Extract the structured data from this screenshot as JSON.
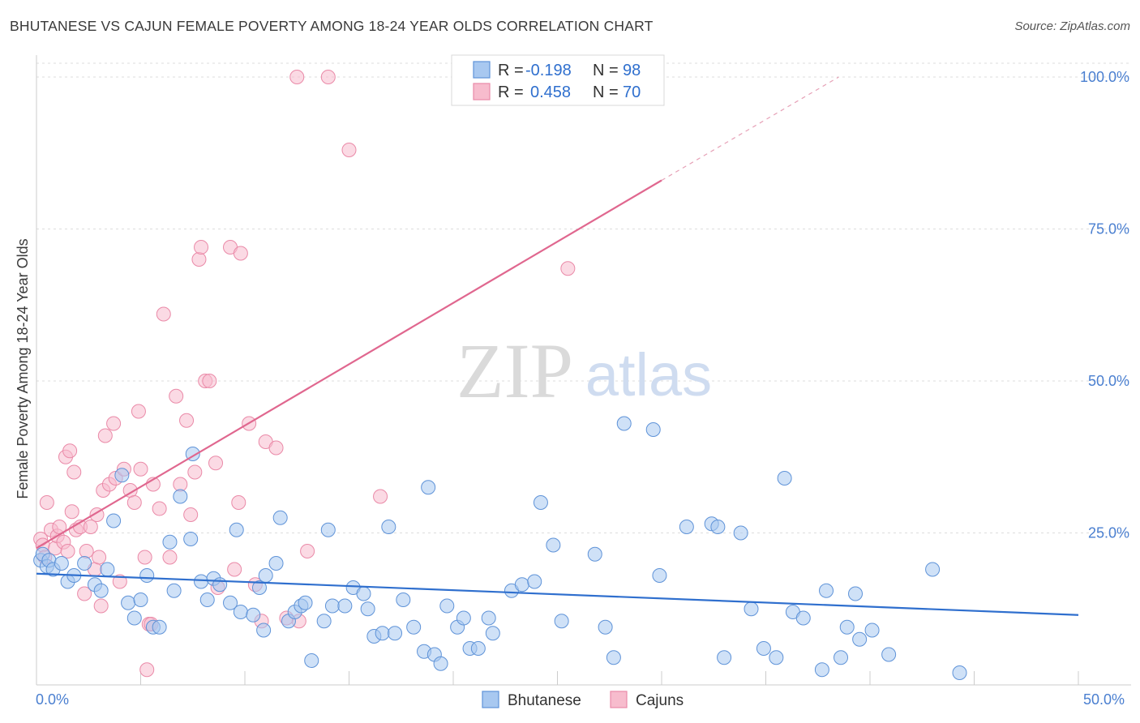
{
  "header": {
    "title": "BHUTANESE VS CAJUN FEMALE POVERTY AMONG 18-24 YEAR OLDS CORRELATION CHART",
    "source": "Source: ZipAtlas.com"
  },
  "watermark": {
    "zip": "ZIP",
    "atlas": "atlas"
  },
  "legend_top": {
    "rows": [
      {
        "r_label": "R =",
        "r_value": "-0.198",
        "n_label": "N =",
        "n_value": "98"
      },
      {
        "r_label": "R =",
        "r_value": "0.458",
        "n_label": "N =",
        "n_value": "70"
      }
    ]
  },
  "colors": {
    "bhutanese_fill": "#a8c8f0",
    "bhutanese_stroke": "#5f93d8",
    "bhutanese_line": "#2f6fce",
    "cajun_fill": "#f7bccd",
    "cajun_stroke": "#ea8aa8",
    "cajun_line": "#e0678f",
    "tick_label": "#4a7fd0",
    "grid": "#dddddd"
  },
  "chart_data": {
    "type": "scatter",
    "title": "BHUTANESE VS CAJUN FEMALE POVERTY AMONG 18-24 YEAR OLDS CORRELATION CHART",
    "xlabel": "",
    "ylabel": "Female Poverty Among 18-24 Year Olds",
    "xlim": [
      0,
      50
    ],
    "ylim": [
      0,
      100
    ],
    "x_tick_labels": [
      "0.0%",
      "50.0%"
    ],
    "y_tick_labels": [
      "25.0%",
      "50.0%",
      "75.0%",
      "100.0%"
    ],
    "y_ticks": [
      25,
      50,
      75,
      100
    ],
    "grid": true,
    "legend_position": "top-center",
    "series": [
      {
        "name": "Bhutanese",
        "r": -0.198,
        "n": 98,
        "trend": {
          "x0": 0,
          "y0": 18.3,
          "x1": 50,
          "y1": 11.5
        },
        "points": [
          [
            0.2,
            20.5
          ],
          [
            0.3,
            21.5
          ],
          [
            0.5,
            19.5
          ],
          [
            0.6,
            20.5
          ],
          [
            0.8,
            19.0
          ],
          [
            1.2,
            20.0
          ],
          [
            1.5,
            17.0
          ],
          [
            1.8,
            18.0
          ],
          [
            2.3,
            20.0
          ],
          [
            2.8,
            16.5
          ],
          [
            3.1,
            15.5
          ],
          [
            3.4,
            19.0
          ],
          [
            3.7,
            27.0
          ],
          [
            4.1,
            34.5
          ],
          [
            4.4,
            13.5
          ],
          [
            4.7,
            11.0
          ],
          [
            5.0,
            14.0
          ],
          [
            5.3,
            18.0
          ],
          [
            5.6,
            9.5
          ],
          [
            5.9,
            9.5
          ],
          [
            6.4,
            23.5
          ],
          [
            6.6,
            15.5
          ],
          [
            6.9,
            31.0
          ],
          [
            7.4,
            24.0
          ],
          [
            7.5,
            38.0
          ],
          [
            7.9,
            17.0
          ],
          [
            8.2,
            14.0
          ],
          [
            8.5,
            17.5
          ],
          [
            8.8,
            16.5
          ],
          [
            9.3,
            13.5
          ],
          [
            9.6,
            25.5
          ],
          [
            9.8,
            12.0
          ],
          [
            10.4,
            11.5
          ],
          [
            10.7,
            16.0
          ],
          [
            10.9,
            9.0
          ],
          [
            11.0,
            18.0
          ],
          [
            11.5,
            20.0
          ],
          [
            11.7,
            27.5
          ],
          [
            12.1,
            10.5
          ],
          [
            12.4,
            12.0
          ],
          [
            12.7,
            13.0
          ],
          [
            12.9,
            13.5
          ],
          [
            13.2,
            4.0
          ],
          [
            13.8,
            10.5
          ],
          [
            14.0,
            25.5
          ],
          [
            14.2,
            13.0
          ],
          [
            14.8,
            13.0
          ],
          [
            15.2,
            16.0
          ],
          [
            15.7,
            15.0
          ],
          [
            15.9,
            12.5
          ],
          [
            16.2,
            8.0
          ],
          [
            16.6,
            8.5
          ],
          [
            16.9,
            26.0
          ],
          [
            17.2,
            8.5
          ],
          [
            17.6,
            14.0
          ],
          [
            18.1,
            9.5
          ],
          [
            18.6,
            5.5
          ],
          [
            18.8,
            32.5
          ],
          [
            19.1,
            5.0
          ],
          [
            19.4,
            3.5
          ],
          [
            19.7,
            13.0
          ],
          [
            20.2,
            9.5
          ],
          [
            20.5,
            11.0
          ],
          [
            20.8,
            6.0
          ],
          [
            21.2,
            6.0
          ],
          [
            21.7,
            11.0
          ],
          [
            21.9,
            8.5
          ],
          [
            22.8,
            15.5
          ],
          [
            23.3,
            16.5
          ],
          [
            23.9,
            17.0
          ],
          [
            24.2,
            30.0
          ],
          [
            24.8,
            23.0
          ],
          [
            25.2,
            10.5
          ],
          [
            26.8,
            21.5
          ],
          [
            27.3,
            9.5
          ],
          [
            27.7,
            4.5
          ],
          [
            28.2,
            43.0
          ],
          [
            29.6,
            42.0
          ],
          [
            29.9,
            18.0
          ],
          [
            31.2,
            26.0
          ],
          [
            32.4,
            26.5
          ],
          [
            32.7,
            26.0
          ],
          [
            33.0,
            4.5
          ],
          [
            33.8,
            25.0
          ],
          [
            34.3,
            12.5
          ],
          [
            34.9,
            6.0
          ],
          [
            35.5,
            4.5
          ],
          [
            35.9,
            34.0
          ],
          [
            36.3,
            12.0
          ],
          [
            36.8,
            11.0
          ],
          [
            37.7,
            2.5
          ],
          [
            37.9,
            15.5
          ],
          [
            38.6,
            4.5
          ],
          [
            38.9,
            9.5
          ],
          [
            39.3,
            15.0
          ],
          [
            39.5,
            7.5
          ],
          [
            40.1,
            9.0
          ],
          [
            40.9,
            5.0
          ],
          [
            43.0,
            19.0
          ],
          [
            44.3,
            2.0
          ]
        ]
      },
      {
        "name": "Cajuns",
        "r": 0.458,
        "n": 70,
        "trend": {
          "x0": 0,
          "y0": 22.5,
          "x1": 30.0,
          "y1": 83.0,
          "dash_to_x": 38.5,
          "dash_to_y": 100.0
        },
        "points": [
          [
            0.2,
            24.0
          ],
          [
            0.3,
            23.0
          ],
          [
            0.4,
            21.0
          ],
          [
            0.5,
            30.0
          ],
          [
            0.7,
            25.5
          ],
          [
            0.9,
            22.5
          ],
          [
            1.0,
            24.5
          ],
          [
            1.1,
            26.0
          ],
          [
            1.3,
            23.5
          ],
          [
            1.4,
            37.5
          ],
          [
            1.5,
            22.0
          ],
          [
            1.6,
            38.5
          ],
          [
            1.7,
            28.5
          ],
          [
            1.8,
            35.0
          ],
          [
            1.9,
            25.5
          ],
          [
            2.1,
            26.0
          ],
          [
            2.3,
            15.0
          ],
          [
            2.4,
            22.0
          ],
          [
            2.6,
            26.0
          ],
          [
            2.8,
            19.0
          ],
          [
            2.9,
            28.0
          ],
          [
            3.0,
            21.0
          ],
          [
            3.1,
            13.0
          ],
          [
            3.2,
            32.0
          ],
          [
            3.3,
            41.0
          ],
          [
            3.5,
            33.0
          ],
          [
            3.7,
            43.0
          ],
          [
            3.8,
            34.0
          ],
          [
            4.0,
            17.0
          ],
          [
            4.2,
            35.5
          ],
          [
            4.5,
            32.0
          ],
          [
            4.7,
            30.0
          ],
          [
            4.9,
            45.0
          ],
          [
            5.0,
            35.5
          ],
          [
            5.2,
            21.0
          ],
          [
            5.3,
            2.5
          ],
          [
            5.4,
            10.0
          ],
          [
            5.5,
            10.0
          ],
          [
            5.6,
            33.0
          ],
          [
            5.9,
            29.0
          ],
          [
            6.1,
            61.0
          ],
          [
            6.4,
            21.0
          ],
          [
            6.7,
            47.5
          ],
          [
            6.9,
            33.0
          ],
          [
            7.2,
            43.5
          ],
          [
            7.4,
            28.0
          ],
          [
            7.6,
            35.0
          ],
          [
            7.8,
            70.0
          ],
          [
            7.9,
            72.0
          ],
          [
            8.1,
            50.0
          ],
          [
            8.3,
            50.0
          ],
          [
            8.6,
            36.5
          ],
          [
            8.7,
            16.0
          ],
          [
            9.3,
            72.0
          ],
          [
            9.5,
            19.0
          ],
          [
            9.7,
            30.0
          ],
          [
            9.8,
            71.0
          ],
          [
            10.2,
            43.0
          ],
          [
            10.5,
            16.5
          ],
          [
            10.8,
            10.5
          ],
          [
            11.0,
            40.0
          ],
          [
            11.5,
            39.0
          ],
          [
            12.0,
            11.0
          ],
          [
            12.5,
            100.0
          ],
          [
            13.0,
            22.0
          ],
          [
            14.0,
            100.0
          ],
          [
            15.0,
            88.0
          ],
          [
            16.5,
            31.0
          ],
          [
            25.5,
            68.5
          ],
          [
            12.6,
            10.5
          ]
        ]
      }
    ]
  },
  "bottom_legend": {
    "items": [
      "Bhutanese",
      "Cajuns"
    ]
  }
}
